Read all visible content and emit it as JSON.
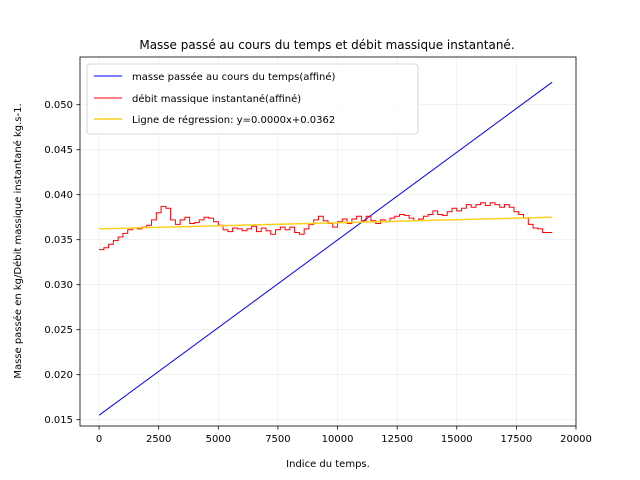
{
  "chart_data": {
    "type": "line",
    "title": "Masse passé au cours du temps et débit massique instantané.",
    "xlabel": "Indice du temps.",
    "ylabel": "Masse passée en kg/Débit massique instantané kg.s-1.",
    "xlim": [
      -800,
      20000
    ],
    "ylim": [
      0.0143,
      0.0553
    ],
    "xticks": [
      0,
      2500,
      5000,
      7500,
      10000,
      12500,
      15000,
      17500,
      20000
    ],
    "xtick_labels": [
      "0",
      "2500",
      "5000",
      "7500",
      "10000",
      "12500",
      "15000",
      "17500",
      "20000"
    ],
    "yticks": [
      0.015,
      0.02,
      0.025,
      0.03,
      0.035,
      0.04,
      0.045,
      0.05
    ],
    "ytick_labels": [
      "0.015",
      "0.020",
      "0.025",
      "0.030",
      "0.035",
      "0.040",
      "0.045",
      "0.050"
    ],
    "grid": true,
    "legend_position": "top-left",
    "series": [
      {
        "name": "masse passée au cours du temps(affiné)",
        "color": "#0000ff",
        "style": "line",
        "x": [
          0,
          19000
        ],
        "y": [
          0.0155,
          0.0525
        ]
      },
      {
        "name": "débit massique instantané(affiné)",
        "color": "#ff0000",
        "style": "step",
        "x": [
          0,
          200,
          400,
          600,
          800,
          1000,
          1200,
          1400,
          1600,
          1800,
          2000,
          2200,
          2400,
          2600,
          2800,
          3000,
          3200,
          3400,
          3600,
          3800,
          4000,
          4200,
          4400,
          4600,
          4800,
          5000,
          5200,
          5400,
          5600,
          5800,
          6000,
          6200,
          6400,
          6600,
          6800,
          7000,
          7200,
          7400,
          7600,
          7800,
          8000,
          8200,
          8400,
          8600,
          8800,
          9000,
          9200,
          9400,
          9600,
          9800,
          10000,
          10200,
          10400,
          10600,
          10800,
          11000,
          11200,
          11400,
          11600,
          11800,
          12000,
          12200,
          12400,
          12600,
          12800,
          13000,
          13200,
          13400,
          13600,
          13800,
          14000,
          14200,
          14400,
          14600,
          14800,
          15000,
          15200,
          15400,
          15600,
          15800,
          16000,
          16200,
          16400,
          16600,
          16800,
          17000,
          17200,
          17400,
          17600,
          17800,
          18000,
          18200,
          18400,
          18600,
          18800,
          19000
        ],
        "y": [
          0.0339,
          0.0341,
          0.0345,
          0.0349,
          0.0353,
          0.0357,
          0.0361,
          0.0363,
          0.0362,
          0.0364,
          0.0366,
          0.0372,
          0.038,
          0.0387,
          0.0385,
          0.0372,
          0.0367,
          0.0372,
          0.0375,
          0.0368,
          0.0369,
          0.0372,
          0.0375,
          0.0374,
          0.037,
          0.0366,
          0.0361,
          0.0359,
          0.0363,
          0.0362,
          0.036,
          0.0362,
          0.0365,
          0.0359,
          0.0363,
          0.036,
          0.0356,
          0.0361,
          0.0364,
          0.0361,
          0.0364,
          0.0358,
          0.0356,
          0.0362,
          0.0367,
          0.0372,
          0.0376,
          0.0371,
          0.0368,
          0.0364,
          0.037,
          0.0373,
          0.0368,
          0.0373,
          0.0376,
          0.0371,
          0.0376,
          0.0371,
          0.0368,
          0.0372,
          0.037,
          0.0374,
          0.0376,
          0.0378,
          0.0377,
          0.0374,
          0.0371,
          0.0373,
          0.0376,
          0.0378,
          0.0382,
          0.0378,
          0.0377,
          0.0381,
          0.0385,
          0.0382,
          0.0385,
          0.0389,
          0.0386,
          0.0389,
          0.0391,
          0.0388,
          0.0391,
          0.0389,
          0.0386,
          0.0389,
          0.0386,
          0.0381,
          0.0378,
          0.0374,
          0.0367,
          0.0363,
          0.0362,
          0.0358,
          0.0358,
          0.0358
        ]
      },
      {
        "name": "Ligne de régression: y=0.0000x+0.0362",
        "color": "#ffd11a",
        "style": "line",
        "x": [
          0,
          19000
        ],
        "y": [
          0.0362,
          0.0375
        ]
      }
    ]
  }
}
